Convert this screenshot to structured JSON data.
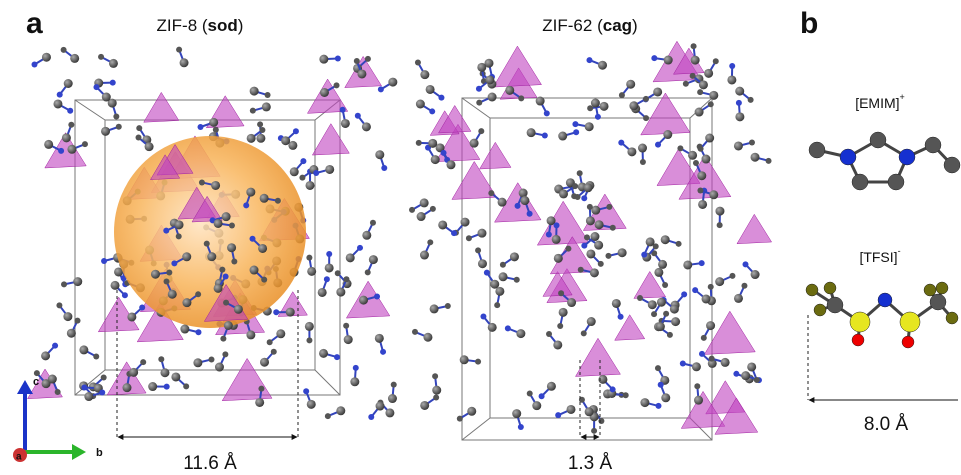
{
  "panel_a": {
    "label": "a",
    "zif8": {
      "title": [
        "ZIF-8 (",
        "sod",
        ")"
      ],
      "pore": "11.6 Å"
    },
    "zif62": {
      "title": [
        "ZIF-62 (",
        "cag",
        ")"
      ],
      "pore": "1.3 Å"
    },
    "axes": {
      "c": "c",
      "a": "a",
      "b": "b"
    }
  },
  "panel_b": {
    "label": "b",
    "cation": {
      "name": "[EMIM]",
      "charge": "+"
    },
    "anion": {
      "name": "[TFSI]",
      "charge": "-"
    },
    "size": "8.0 Å"
  }
}
